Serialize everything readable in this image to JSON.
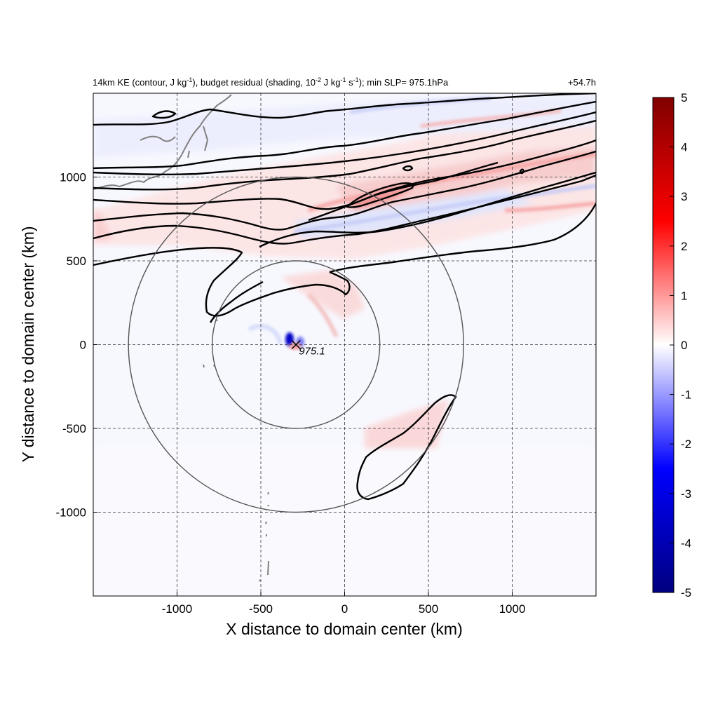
{
  "chart_data": {
    "type": "heatmap",
    "title": {
      "pre": "14km KE (contour, J kg",
      "e1": "-1",
      "mid1": "), budget residual (shading, 10",
      "e2": "-2",
      "mid2": " J kg",
      "e3": "-1",
      "mid3": " s",
      "e4": "-1",
      "post": "); min SLP= 975.1hPa"
    },
    "time_label": "+54.7h",
    "xlabel": "X distance to domain center (km)",
    "ylabel": "Y distance to domain center (km)",
    "xlim": [
      -1500,
      1500
    ],
    "ylim": [
      -1500,
      1500
    ],
    "xticks": [
      -1000,
      -500,
      0,
      500,
      1000
    ],
    "yticks": [
      -1000,
      -500,
      0,
      500,
      1000
    ],
    "grid": true,
    "colorbar": {
      "range": [
        -5,
        5
      ],
      "ticks": [
        5,
        4,
        3,
        2,
        1,
        0,
        -1,
        -2,
        -3,
        -4,
        -5
      ],
      "colormap": [
        "#000080",
        "#0000ff",
        "#ffffff",
        "#ff0000",
        "#800000"
      ]
    },
    "center_marker": {
      "x": -290,
      "y": 0,
      "label": "975.1"
    },
    "range_circles": [
      {
        "cx": -290,
        "cy": 0,
        "radius": 500
      },
      {
        "cx": -290,
        "cy": 0,
        "radius": 1000
      }
    ],
    "colors": {
      "contour": "#000000",
      "circle": "#555555",
      "coast": "#808080",
      "positive": "#ff0000",
      "negative": "#0000ff"
    }
  }
}
